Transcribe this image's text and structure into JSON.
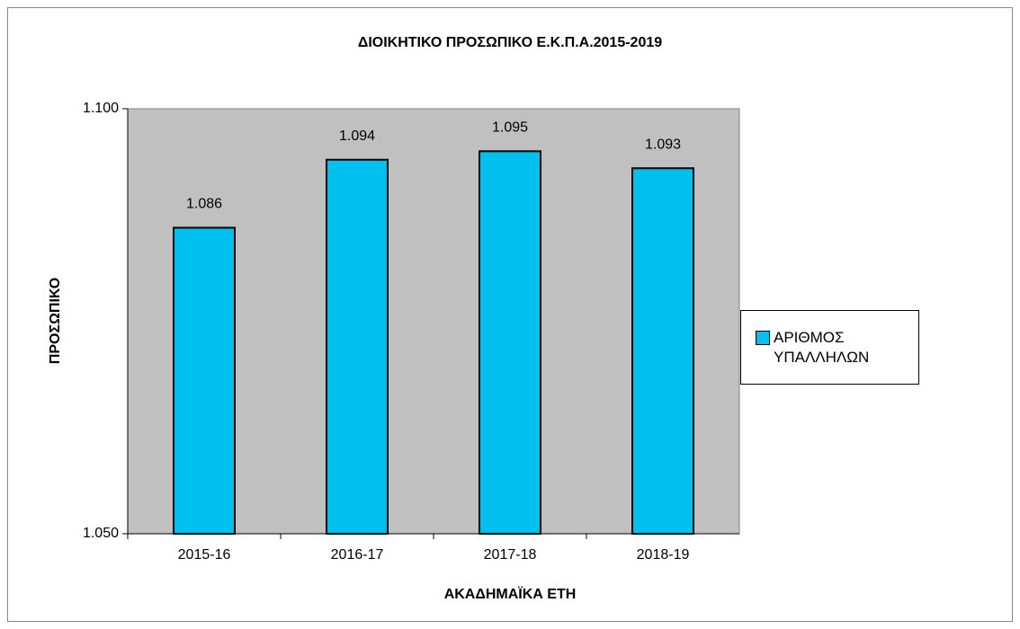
{
  "chart_data": {
    "type": "bar",
    "title": "ΔΙΟΙΚΗΤΙΚΟ ΠΡΟΣΩΠΙΚΟ Ε.Κ.Π.Α.2015-2019",
    "x_label": "ΑΚΑΔΗΜΑΪΚΑ ΕΤΗ",
    "y_label": "ΠΡΟΣΩΠΙΚΟ",
    "categories": [
      "2015-16",
      "2016-17",
      "2017-18",
      "2018-19"
    ],
    "series": [
      {
        "name": "ΑΡΙΘΜΟΣ ΥΠΑΛΛΗΛΩΝ",
        "color": "#00c0f0",
        "values": [
          1086,
          1094,
          1095,
          1093
        ],
        "value_labels": [
          "1.086",
          "1.094",
          "1.095",
          "1.093"
        ]
      }
    ],
    "ylim": [
      1050,
      1100
    ],
    "yticks": [
      {
        "value": 1050,
        "label": "1.050"
      },
      {
        "value": 1100,
        "label": "1.100"
      }
    ],
    "plot_background": "#c0c0c0",
    "legend": "right"
  }
}
